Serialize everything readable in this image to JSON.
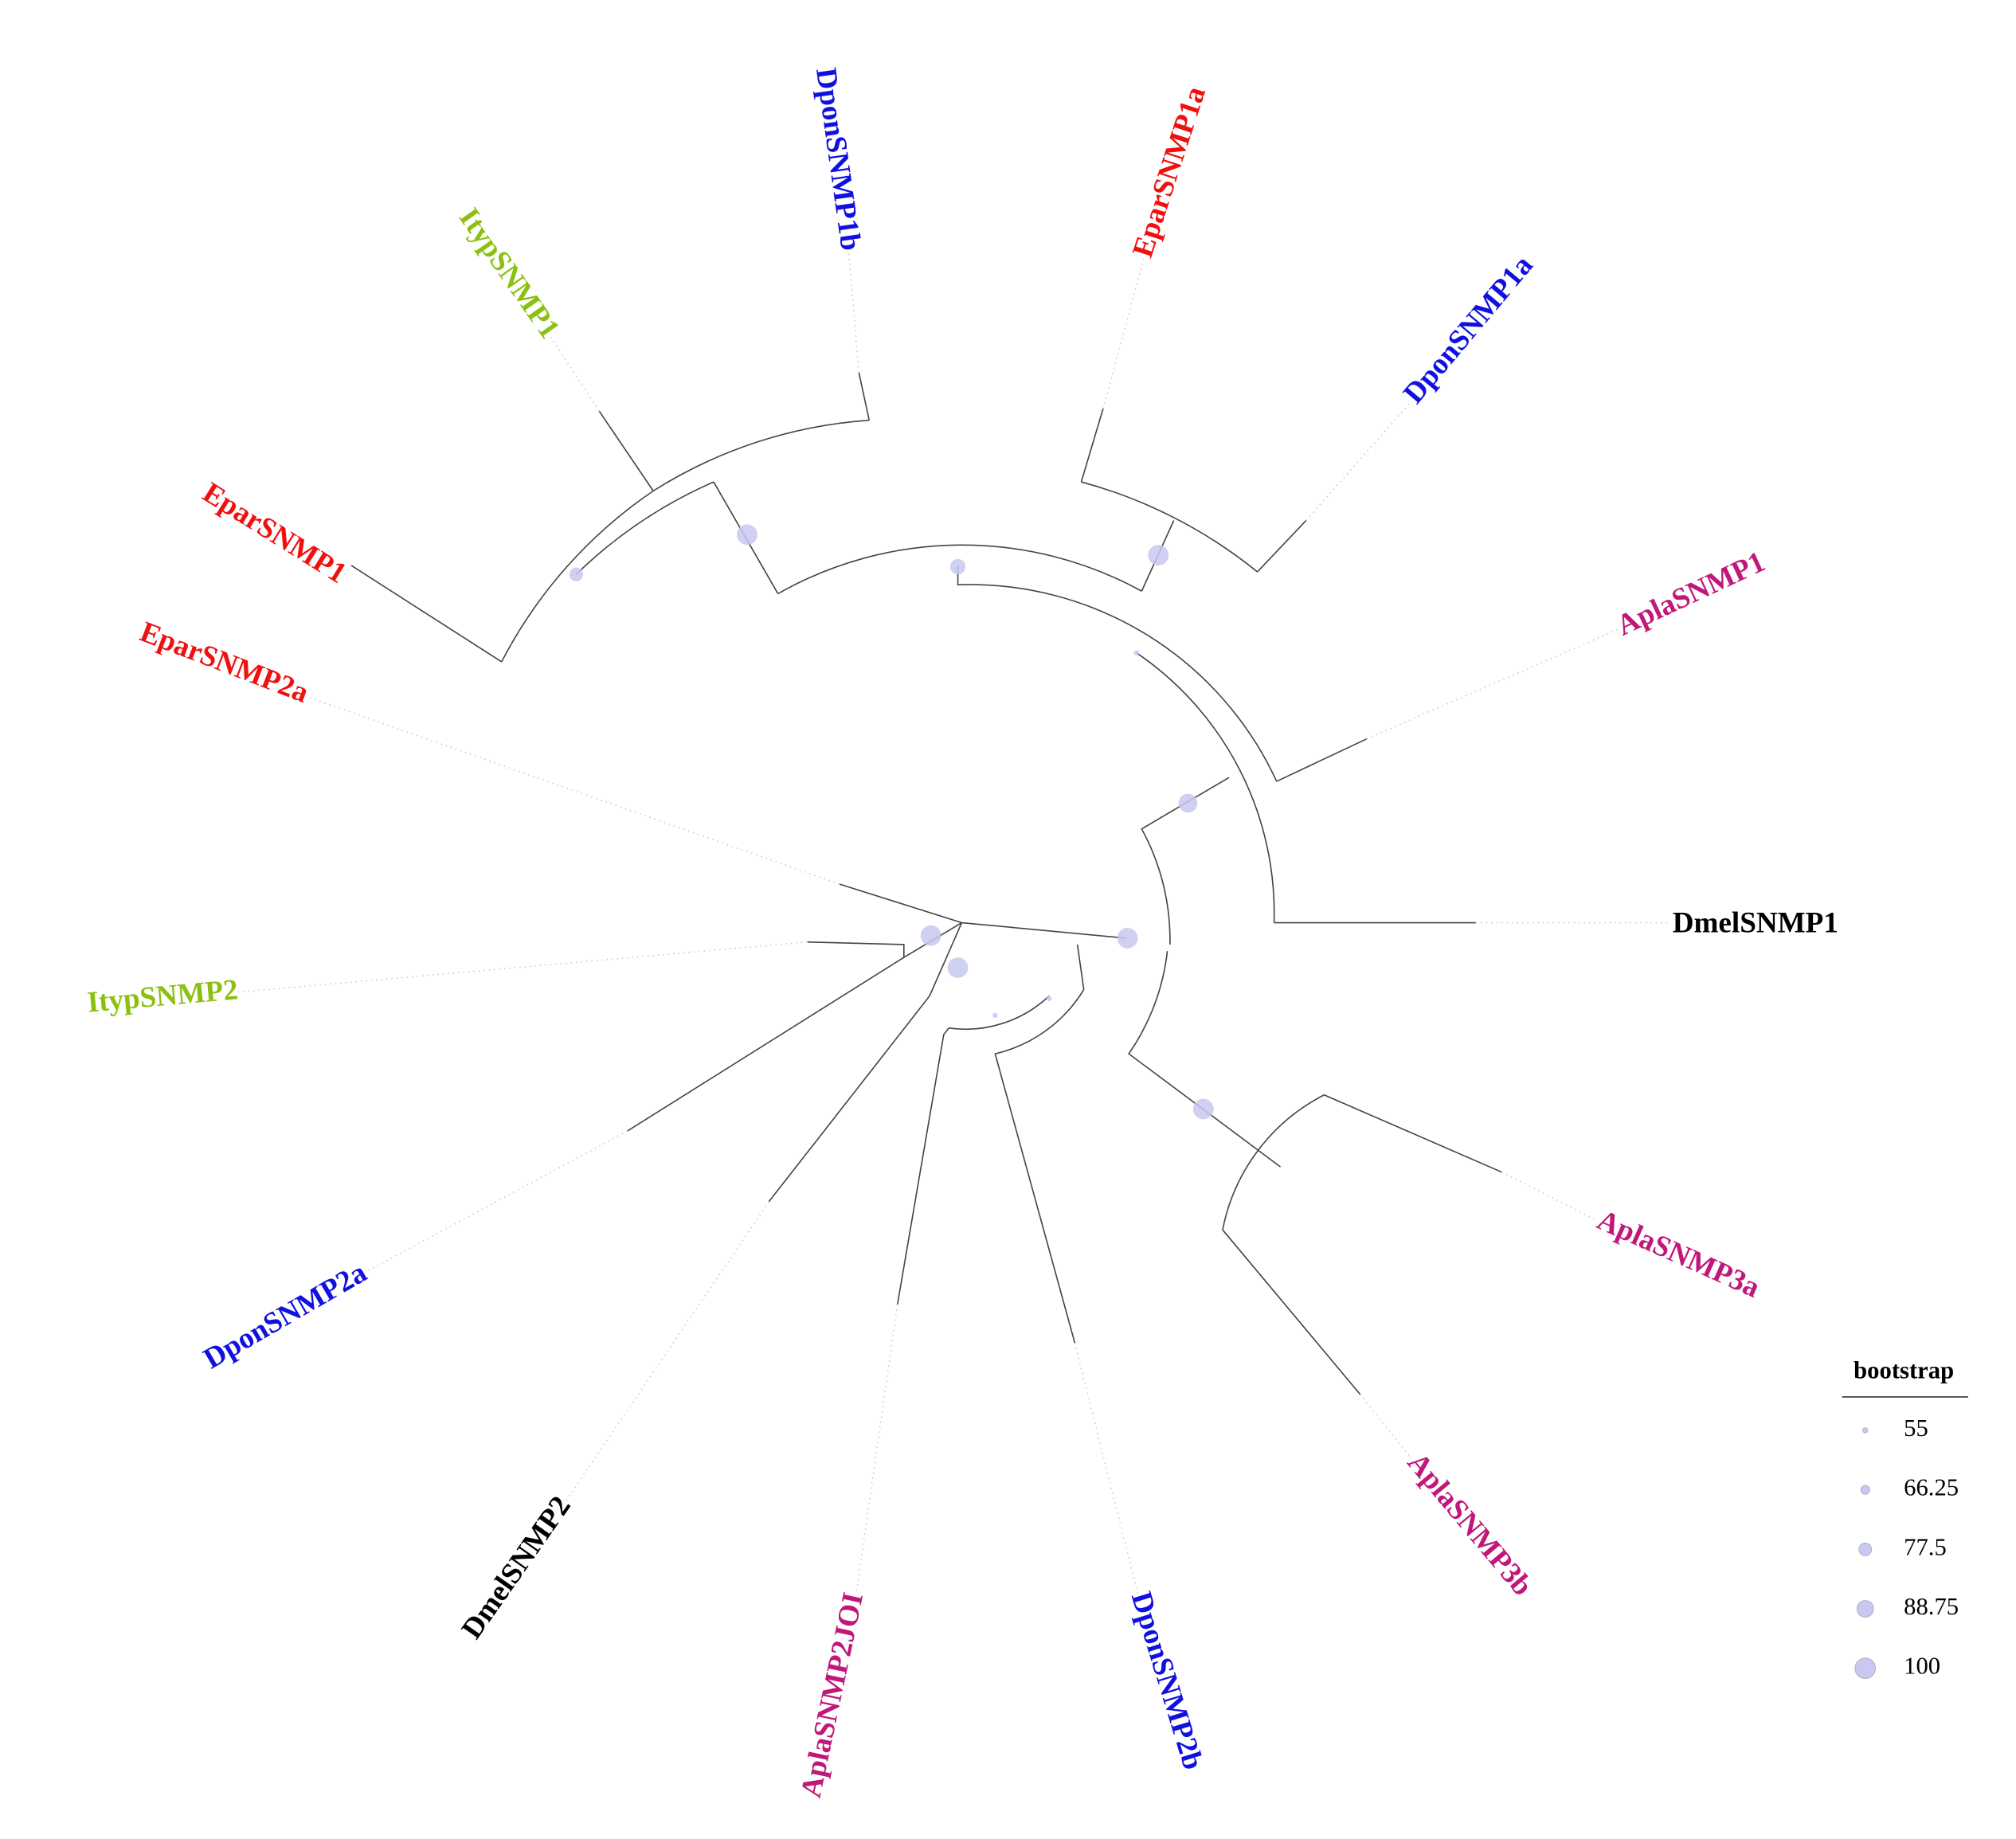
{
  "leaves": [
    {
      "label": "DmelSNMP1",
      "color": "#000000"
    },
    {
      "label": "AplaSNMP1",
      "color": "#c0187a"
    },
    {
      "label": "DponSNMP1a",
      "color": "#1010e0"
    },
    {
      "label": "EparSNMP1a",
      "color": "#f01010"
    },
    {
      "label": "DponSNMP1b",
      "color": "#1010e0"
    },
    {
      "label": "ItypSNMP1",
      "color": "#8cc010"
    },
    {
      "label": "EparSNMP1",
      "color": "#f01010"
    },
    {
      "label": "EparSNMP2a",
      "color": "#f01010"
    },
    {
      "label": "ItypSNMP2",
      "color": "#8cc010"
    },
    {
      "label": "DponSNMP2a",
      "color": "#1010e0"
    },
    {
      "label": "DmelSNMP2",
      "color": "#000000"
    },
    {
      "label": "AplaSNMP2JOI",
      "color": "#c0187a"
    },
    {
      "label": "DponSNMP2b",
      "color": "#1010e0"
    },
    {
      "label": "AplaSNMP3b",
      "color": "#c0187a"
    },
    {
      "label": "AplaSNMP3a",
      "color": "#c0187a"
    }
  ],
  "nodes": [
    {
      "bootstrap": 100
    },
    {
      "bootstrap": 80
    },
    {
      "bootstrap": 85
    },
    {
      "bootstrap": 100
    },
    {
      "bootstrap": 55
    },
    {
      "bootstrap": 95
    },
    {
      "bootstrap": 100
    },
    {
      "bootstrap": 100
    },
    {
      "bootstrap": 100
    },
    {
      "bootstrap": 100
    },
    {
      "bootstrap": 55
    },
    {
      "bootstrap": 55
    }
  ],
  "legend": {
    "title": "bootstrap",
    "values": [
      55,
      66.25,
      77.5,
      88.75,
      100
    ],
    "color": "#c8c8f0"
  }
}
